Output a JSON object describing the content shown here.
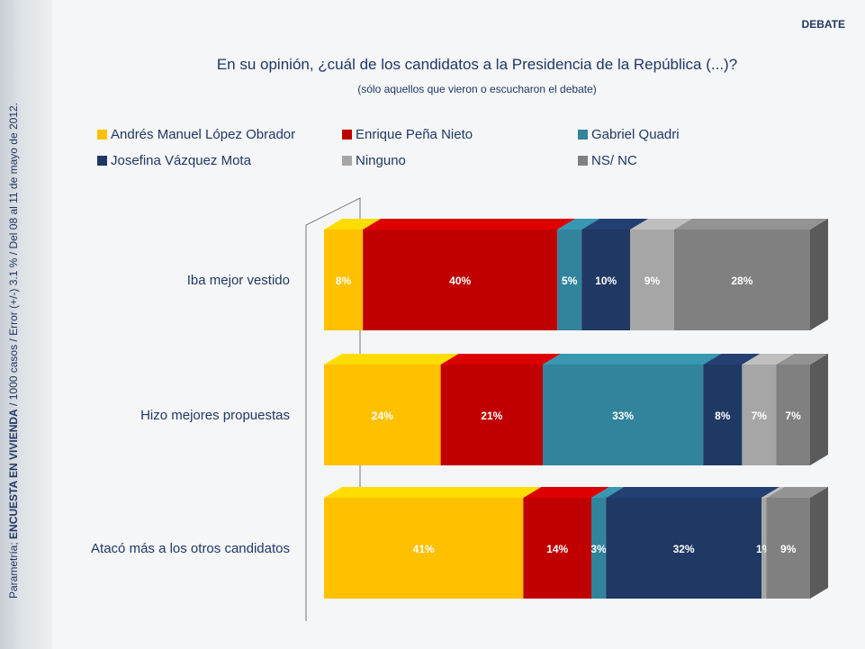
{
  "source_note": {
    "prefix": "Parametría; ",
    "bold": "ENCUESTA EN VIVIENDA",
    "rest": " / 1000 casos / Error (+/-) 3.1 % / Del 08 al 11 de mayo de 2012."
  },
  "section_tag": "DEBATE",
  "chart_data": {
    "type": "bar",
    "orientation": "horizontal-stacked-100",
    "title": "En su opinión, ¿cuál de los candidatos a la Presidencia de la República (...)?",
    "subtitle": "(sólo aquellos que vieron o escucharon el debate)",
    "legend_placement": "top",
    "categories": [
      "Iba mejor vestido",
      "Hizo mejores propuestas",
      "Atacó más a los otros candidatos"
    ],
    "series": [
      {
        "name": "Andrés Manuel López Obrador",
        "color": "#FFC000",
        "values": [
          8,
          24,
          41
        ]
      },
      {
        "name": "Enrique Peña Nieto",
        "color": "#C00000",
        "values": [
          40,
          21,
          14
        ]
      },
      {
        "name": "Gabriel Quadri",
        "color": "#31849B",
        "values": [
          5,
          33,
          3
        ]
      },
      {
        "name": "Josefina Vázquez Mota",
        "color": "#1F3864",
        "values": [
          10,
          8,
          32
        ]
      },
      {
        "name": "Ninguno",
        "color": "#A6A6A6",
        "values": [
          9,
          7,
          1
        ]
      },
      {
        "name": "NS/ NC",
        "color": "#808080",
        "values": [
          28,
          7,
          9
        ]
      }
    ],
    "value_suffix": "%",
    "xlim": [
      0,
      100
    ]
  }
}
